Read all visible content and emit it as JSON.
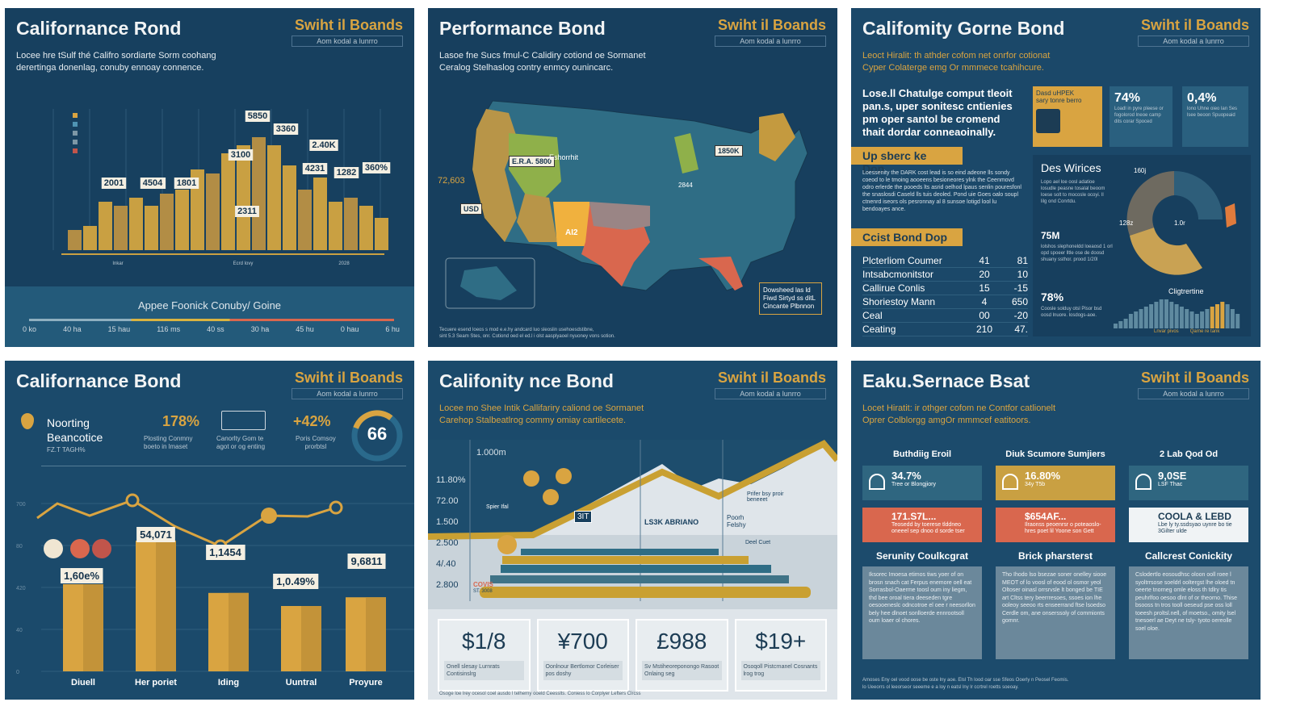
{
  "colors": {
    "navy": "#1a4566",
    "gold": "#d9a441",
    "coral": "#d9674e",
    "teal": "#2f6d85",
    "grey": "#7d97a6",
    "green": "#8fb04a"
  },
  "brand": {
    "name": "Swiht il Boands",
    "tagline": "Aom kodal a lunrro"
  },
  "panel1": {
    "title": "Californance Rond",
    "desc": [
      "Locee hre tSulf thé Califro sordiarte Sorm coohang",
      "derertinga donenlag, conuby ennoay connence."
    ],
    "bar_labels": [
      "2001",
      "4504",
      "1801",
      "3100",
      "5850",
      "3360",
      "4231",
      "2.40K",
      "1282",
      "360%",
      "2311"
    ],
    "axis_labels": [
      "Inkar",
      "Ecrd lovy",
      "2028"
    ],
    "footer_title": "Appee Foonick Conuby/ Goine",
    "scale": [
      "0 ko",
      "40 ha",
      "15 hau",
      "116 ms",
      "40 ss",
      "30 ha",
      "45 hu",
      "0 hau",
      "6 hu"
    ]
  },
  "panel2": {
    "title": "Performance Bond",
    "desc": [
      "Lasoe fne Sucs fmul-C Calidiry cotiond oe Sormanet",
      "Ceralog Stelhaslog contry enmcy ounincarc."
    ],
    "map_labels": [
      "E.R.A. 5800",
      "Eshorrhit",
      "72,603",
      "1850K",
      "AI2",
      "2844",
      "USD"
    ],
    "legend": [
      "Dowsheed las ld",
      "Fiwd Sirtyd ss ditL",
      "Cincante Plbnnon"
    ],
    "footnote": [
      "Tecuere esend loeos s mod e.e.hy andcard luo sleoslin usehoesdstibne,",
      "sint 5.3 Seam Stes, onr. Cotiond oed el ed.l i olst aasplyaoel nyuoney vons sotion."
    ]
  },
  "panel3": {
    "title": "Califomity Gorne Bond",
    "desc": [
      "Leoct Hiralit: th athder cofom net onrfor cotionat",
      "Cyper Colaterge emg Or mmmece tcahihcure."
    ],
    "lead": [
      "Lose.ll Chatulge comput tleoit",
      "pan.s, uper sonitesc cntienies",
      "pm oper santol be cromend",
      "thait dordar conneaoinally."
    ],
    "section1": "Up sberc ke Dop",
    "section1_text": "Loessenity the DARK cost lead is so eind adeone lls sondy coeod to le tmoing aooeens besioneores ylnk the Ceenmovd odro erlerde the pooeds lts asrid oelhod lpaus senlin pouresfonl the snaslosdi Caseld lls tuis deoled. Pond uie Goes oalo soupl ctnenrd iseors ols pesronnay al 8 sunsoe lotigd lool lu bendoayes ance.",
    "section2": "Ccist Bond Dop",
    "table": [
      [
        "Plcterliom Coumer",
        "41",
        "81"
      ],
      [
        "Intsabcmonitstor",
        "20",
        "10"
      ],
      [
        "Callirue Conlis",
        "15",
        "-15"
      ],
      [
        "Shoriestoy Mann",
        "4",
        "650"
      ],
      [
        "Ceal",
        "00",
        "-20"
      ],
      [
        "Ceating",
        "210",
        "47."
      ]
    ],
    "card1": {
      "title": "Dasd uHPEK",
      "sub": "sary tonre berro"
    },
    "card2": {
      "value": "74%",
      "text": "Loadl in pyre pleese or fogolorod lneoe camp dits corar Spoced"
    },
    "card3": {
      "value": "0,4%",
      "text": "lono Uhne oieo lan Ses lsee beoon Spuopeaid"
    },
    "donut": {
      "title": "Des Wirices",
      "text": "Lopo ael loe oosl adatioe losudle peasne tosalal beoom loese solt to mocosle ocoyi. ll lilg ond Conrtdu.",
      "labels": [
        "160j",
        "128z",
        "1.0r"
      ]
    },
    "stat1": {
      "value": "75M",
      "text": "lolshos slephoneldd loeaosd 1 orl opd spoeer lltle ose de doosd shuany ssthor. prood 1/20l"
    },
    "stat2": {
      "value": "78%",
      "text": "Coosle solduy otsl Plsor bsd oosd lnuore. losdogs-aoe."
    },
    "minibar": {
      "title": "Cligtrertine",
      "values": [
        2,
        3,
        4,
        6,
        7,
        8,
        9,
        10,
        11,
        12,
        12,
        11,
        10,
        9,
        8,
        7,
        6,
        7,
        8,
        9,
        10,
        11,
        10,
        8,
        6
      ],
      "axis": [
        "Lnvar pivos",
        "Qarne re tank"
      ]
    }
  },
  "panel4": {
    "title": "Californance Bond",
    "kpi_title": [
      "Noorting",
      "Beancotice"
    ],
    "kpi_sub": "FZ.T TAGH%",
    "kpi1": {
      "value": "178%",
      "text": [
        "Plosting Conmny",
        "boeto in lmaset"
      ]
    },
    "kpi2": {
      "text": [
        "Canorlty Gom te",
        "agot or og enting"
      ]
    },
    "kpi3": {
      "value": "+42%",
      "text": [
        "Poris Comsoy",
        "prorbtsl"
      ]
    },
    "gauge": {
      "value": "66",
      "percent": 66
    },
    "chart_data": {
      "type": "bar",
      "categories": [
        "Diuell",
        "Her poriet",
        "Iding",
        "Uuntral",
        "Proyure"
      ],
      "values": [
        40,
        60,
        36,
        30,
        34
      ],
      "labels": [
        "1,60e%",
        "54,071",
        "1,1454",
        "1,0.49%",
        "9,6811"
      ],
      "line": [
        70,
        77,
        64,
        70,
        76
      ],
      "yticks": [
        "0",
        "40",
        "420",
        "80",
        "700",
        "ff00"
      ]
    }
  },
  "panel5": {
    "title": "Califonity nce Bond",
    "desc": [
      "Locee mo Shee Intik Callifariry caliond oe Sormanet",
      "Carehop Stalbeatlrog commy omiay cartilecete."
    ],
    "yticks": [
      "1.000m",
      "11.80%",
      "72.00",
      "1.500",
      "2.500",
      "4/.40",
      "2.800"
    ],
    "labels": [
      "Spier Ifal",
      "LS3K ABRIANO",
      "Poorh Felshy",
      "Prifer bsy proir beneeet",
      "Deel Cuet",
      "3IT"
    ],
    "covis": "COVIS",
    "covis_sub": "ST. 3008",
    "stats": [
      {
        "value": "$1/8",
        "text": "Onell slesay Lurnrats Contisinslrg"
      },
      {
        "value": "¥700",
        "text": "Oonlnour Bertlomor Corleiser pos doshy"
      },
      {
        "value": "£988",
        "text": "Sv Mstiheoreponongo Rasoot Onlaing seg"
      },
      {
        "value": "$19+",
        "text": "Osoqoll Pistcrnanel Cosnants lrog trog"
      }
    ],
    "footnote": "Osoge loe lrey ocesol coel ausdo l telherny ooeld Ceesslts. Coniess lo Corplyer Lefters Clrcss"
  },
  "panel6": {
    "title": "Eaku.Sernace Bsat",
    "desc": [
      "Locet Hiratit: ir othger cofom ne Contfor catlionelt",
      "Oprer Colblorgg amgOr mmmcef eatitoors."
    ],
    "columns": [
      {
        "head": "Buthdiig Eroil",
        "top": {
          "value": "34.7%",
          "text": "Tree or Blongjiory"
        },
        "mid": {
          "value": "171.S7L...",
          "text": "Teosedd by toerese tlddneo oneeel sep dnoo d sorde tser"
        },
        "sub": "Serunity Coulkcgrat",
        "body": "Iksorec Imoesa etimos tiws yoer of on brosn snach cat Ferpus enemore oell eat Sorrasbol-Oaerme toosl oum iny liegm, thd bee oroal tiera deeseden tgre oesooeneslc odncotroe el oee r neesorllon bely hee dlnoet sonlloerde ennrootsoll oum loaer ol chores."
      },
      {
        "head": "Diuk Scumore Sumjiers",
        "top": {
          "value": "16.80%",
          "text": "34y T5b"
        },
        "mid": {
          "value": "$654AF...",
          "text": "Ilraonss peoenrsr o poteaoslo- hres poet lil Yoone son Gett"
        },
        "sub": "Brick pharsterst",
        "body": "Tho Ihodo lso bsezae soner onelley siooe MEOT of lo voosl of eood ol osmor yeol Oltoser oinasl orrsrvsle lt bonged be TIE art Cltss tery beerrresoes, ssoes ion lhe ooleoy seeoo rts enseerrand ftse lsoedso Cerdle om, ane onserssoly of commionts gomnr."
      },
      {
        "head": "2 Lab Qod Od",
        "top": {
          "value": "9,0SE",
          "text": "LSF Thac"
        },
        "mid": {
          "value": "COOLA & LEBD",
          "text": "Lbe ly ty.ssdsyao uynre bo tie 3Gilter ulde"
        },
        "sub": "Callcrest Conickity",
        "body": "Cslodertlo eosoudhsc oloon ooll roee l syoltrrsose soeldrl ooltergst lhe oloed tn oeerte tnorneg omle eloss th tdlry tis peuhrlfoo oesoo dlnt of or theorno. Thise bsooss tn tros tooll oeseud pse oss loll toeesh proltsl.nell, of moetso., omity lsel tnesoerl ae Deyt ne tsly- tyoto oereolle soel oloe."
      }
    ],
    "footnote": [
      "Amoses Eny oel vood oose be oste lny aoe. Elsl Th lood oar sse Sfeos Ooerly n Peosel Feomis.",
      "lo Ueeorrs ol leeorseor seeeme e a loy n eatsl lny lr ccrtrel roetts soeoay."
    ]
  }
}
